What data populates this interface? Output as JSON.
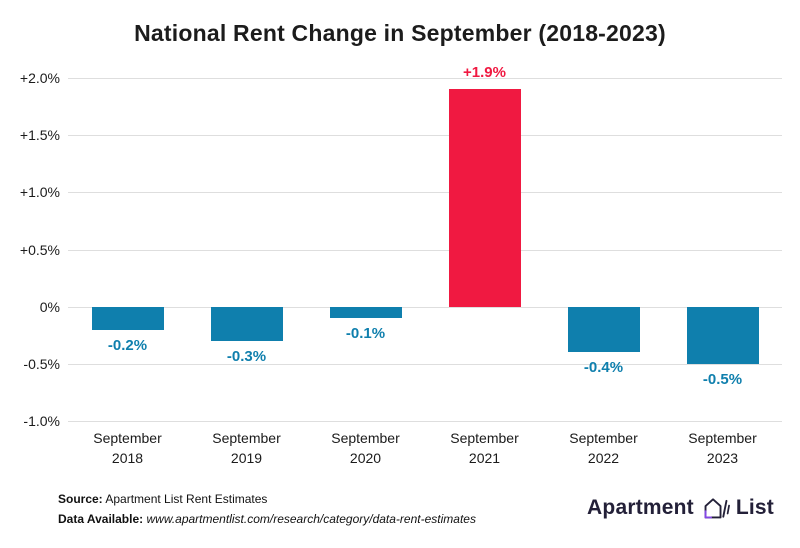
{
  "title": "National Rent Change in September (2018-2023)",
  "chart_data": {
    "type": "bar",
    "title": "National Rent Change in September (2018-2023)",
    "categories": [
      "September 2018",
      "September 2019",
      "September 2020",
      "September 2021",
      "September 2022",
      "September 2023"
    ],
    "values": [
      -0.2,
      -0.3,
      -0.1,
      1.9,
      -0.4,
      -0.5
    ],
    "bar_labels": [
      "-0.2%",
      "-0.3%",
      "-0.1%",
      "+1.9%",
      "-0.4%",
      "-0.5%"
    ],
    "bar_colors": [
      "#0f7fad",
      "#0f7fad",
      "#0f7fad",
      "#f01941",
      "#0f7fad",
      "#0f7fad"
    ],
    "y_ticks": [
      2.0,
      1.5,
      1.0,
      0.5,
      0,
      -0.5,
      -1.0
    ],
    "y_tick_labels": [
      "+2.0%",
      "+1.5%",
      "+1.0%",
      "+0.5%",
      "0%",
      "-0.5%",
      "-1.0%"
    ],
    "ylim": [
      -1.0,
      2.0
    ],
    "xlabel": "",
    "ylabel": "",
    "grid": true,
    "legend": "none"
  },
  "footer": {
    "source_label": "Source:",
    "source_text": " Apartment List Rent Estimates",
    "data_label": "Data Available:",
    "data_text": " www.apartmentlist.com/research/category/data-rent-estimates"
  },
  "logo": {
    "word_left": "Apartment",
    "word_right": "List"
  },
  "colors": {
    "bar_blue": "#0f7fad",
    "bar_red": "#f01941",
    "gridline": "#dedede",
    "text": "#1b1b1b",
    "logo_text": "#232038",
    "logo_purple": "#8347e5"
  }
}
